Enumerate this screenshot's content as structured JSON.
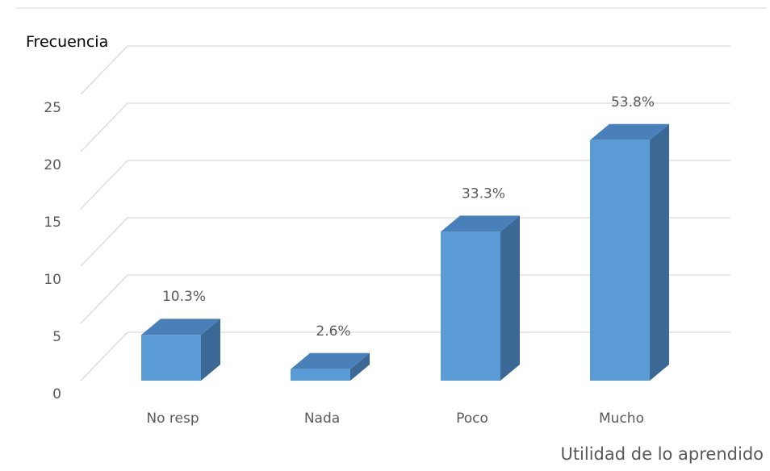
{
  "chart_data": {
    "type": "bar",
    "style": "3d-column",
    "categories": [
      "No resp",
      "Nada",
      "Poco",
      "Mucho"
    ],
    "values": [
      4,
      1,
      13,
      21
    ],
    "data_labels": [
      "10.3%",
      "2.6%",
      "33.3%",
      "53.8%"
    ],
    "title": "",
    "ylabel": "Frecuencia",
    "xlabel": "Utilidad de lo aprendido",
    "ylim": [
      0,
      25
    ],
    "yticks": [
      0,
      5,
      10,
      15,
      20,
      25
    ],
    "grid": true,
    "legend": "none",
    "colors": {
      "bar_front": "#5b9bd5",
      "bar_side": "#3b6894",
      "bar_top": "#4a80b9",
      "grid": "#d9d9d9",
      "text": "#595959"
    }
  }
}
